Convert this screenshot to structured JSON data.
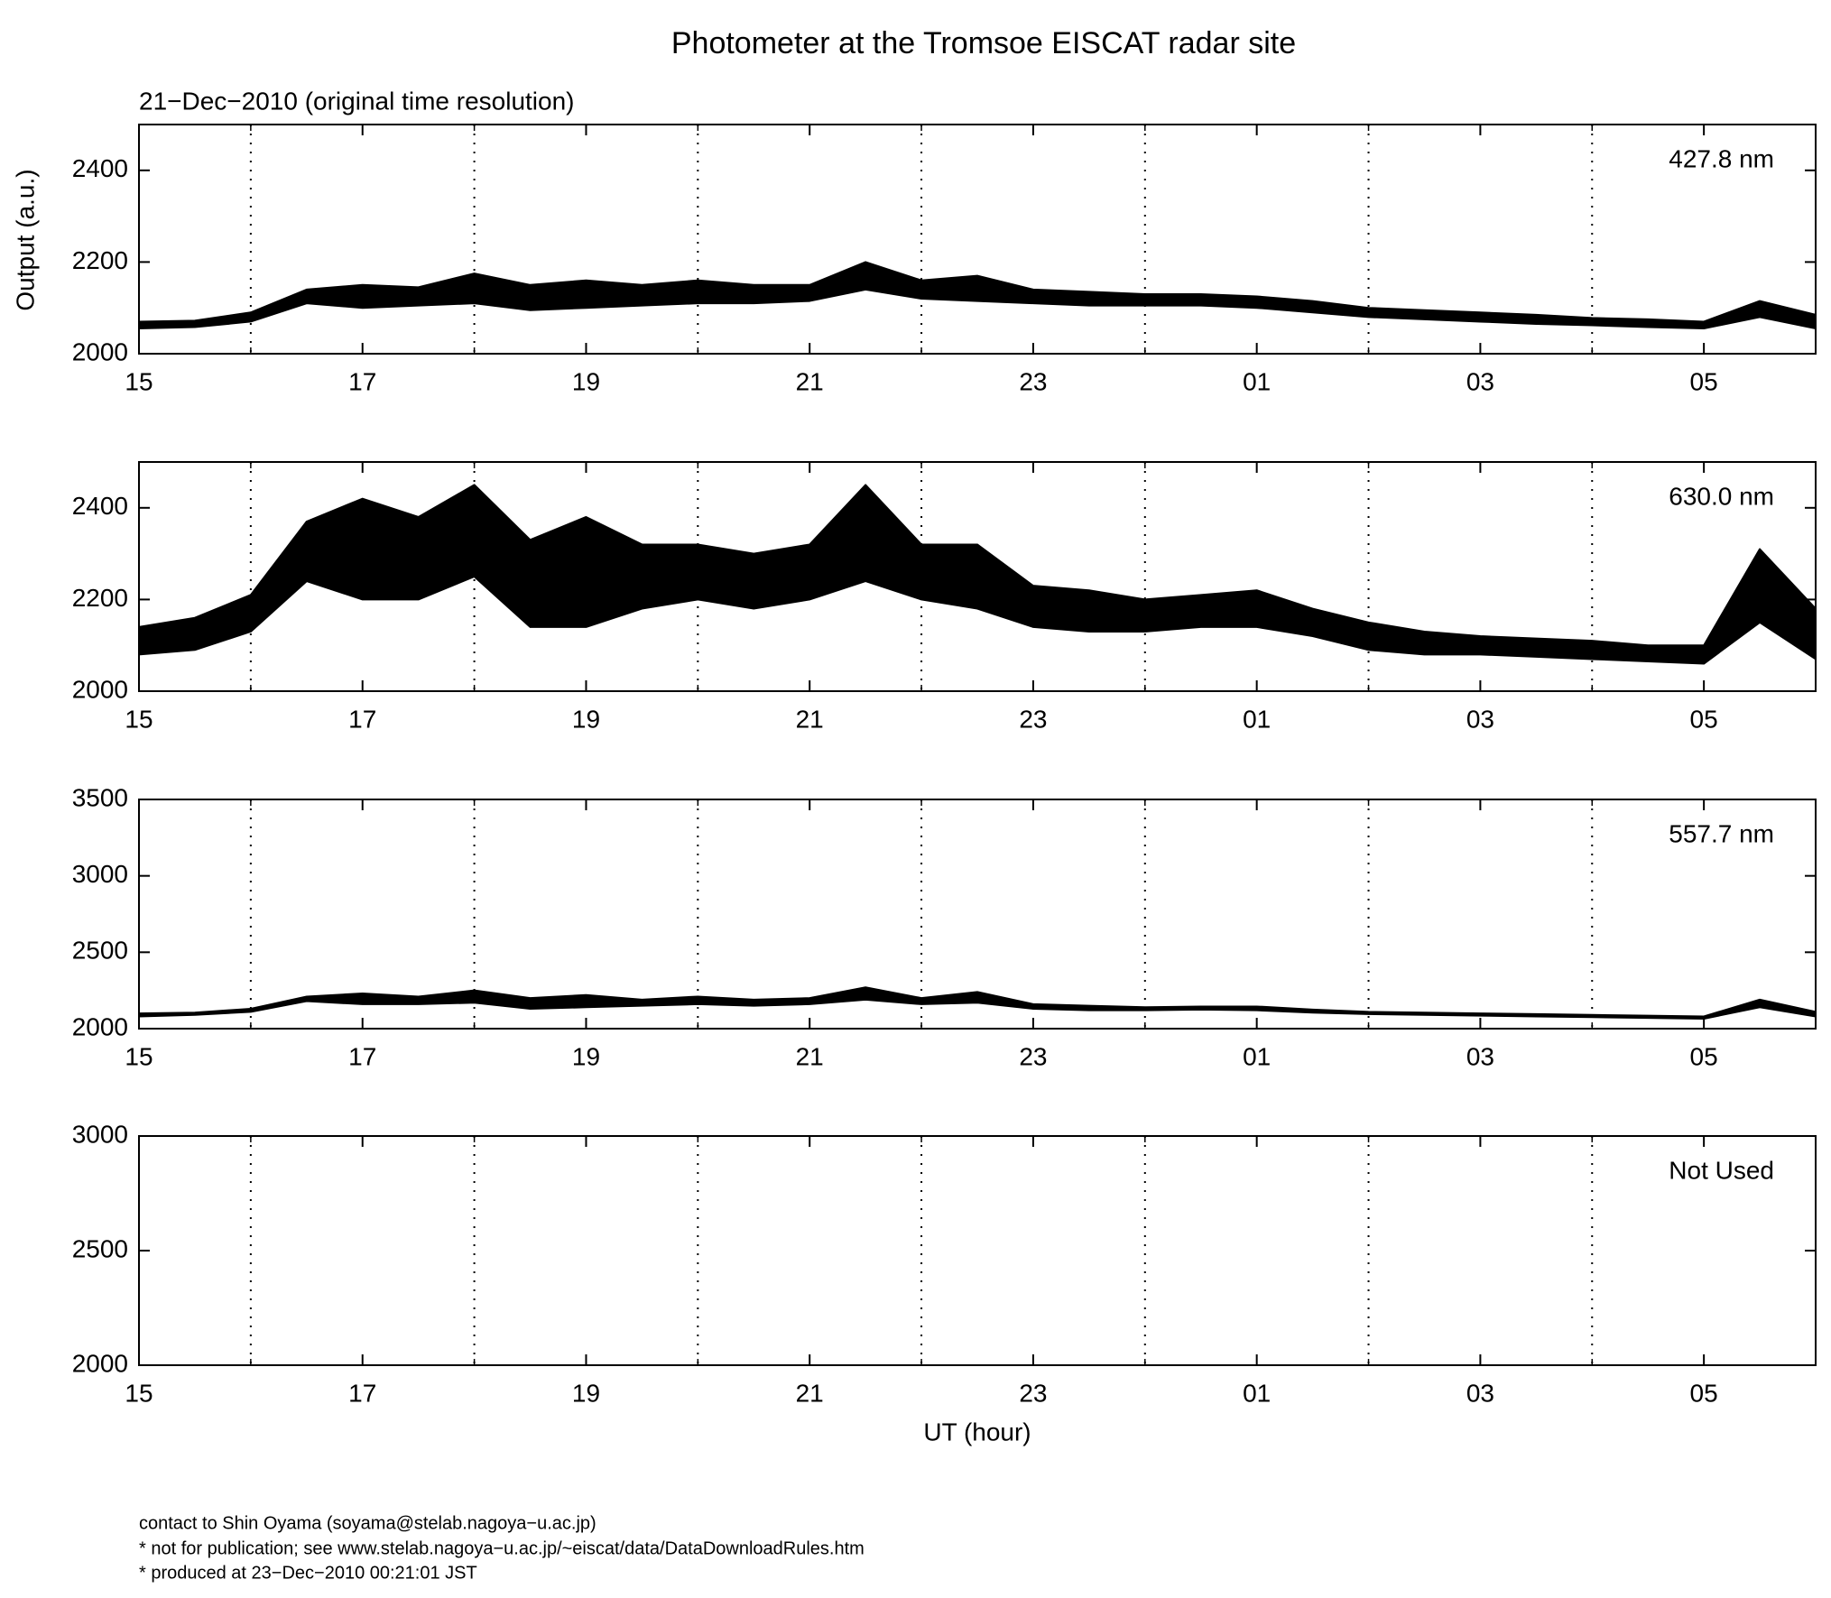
{
  "title": "Photometer at the Tromsoe EISCAT radar site",
  "footer": [
    "contact to Shin Oyama (soyama@stelab.nagoya−u.ac.jp)",
    "* not for publication; see www.stelab.nagoya−u.ac.jp/~eiscat/data/DataDownloadRules.htm",
    "* produced at 23−Dec−2010 00:21:01 JST"
  ],
  "chart_data": [
    {
      "type": "band",
      "subtitle": "21−Dec−2010 (original time resolution)",
      "ylabel": "Output (a.u.)",
      "label": "427.8 nm",
      "color": "#000000",
      "xlim": [
        15,
        30
      ],
      "xticks": [
        15,
        17,
        19,
        21,
        23,
        {
          "value": 25,
          "label": "01"
        },
        {
          "value": 27,
          "label": "03"
        },
        {
          "value": 29,
          "label": "05"
        }
      ],
      "xgrid": [
        16,
        18,
        20,
        22,
        24,
        26,
        28
      ],
      "ylim": [
        2000,
        2500
      ],
      "yticks": [
        2000,
        2200,
        2400
      ],
      "x": [
        15,
        15.5,
        16,
        16.5,
        17,
        17.5,
        18,
        18.5,
        19,
        19.5,
        20,
        20.5,
        21,
        21.5,
        22,
        22.5,
        23,
        23.5,
        24,
        24.5,
        25,
        25.5,
        26,
        26.5,
        27,
        27.5,
        28,
        28.5,
        29,
        29.5,
        30
      ],
      "low": [
        2055,
        2058,
        2070,
        2110,
        2100,
        2105,
        2110,
        2095,
        2100,
        2105,
        2110,
        2110,
        2115,
        2140,
        2120,
        2115,
        2110,
        2105,
        2105,
        2105,
        2100,
        2090,
        2080,
        2075,
        2070,
        2065,
        2062,
        2058,
        2055,
        2080,
        2055
      ],
      "high": [
        2070,
        2072,
        2090,
        2140,
        2150,
        2145,
        2175,
        2150,
        2160,
        2150,
        2160,
        2150,
        2150,
        2200,
        2160,
        2170,
        2140,
        2135,
        2130,
        2130,
        2125,
        2115,
        2100,
        2095,
        2090,
        2085,
        2078,
        2075,
        2070,
        2115,
        2085
      ]
    },
    {
      "type": "band",
      "label": "630.0 nm",
      "color": "#000000",
      "xlim": [
        15,
        30
      ],
      "xticks": [
        15,
        17,
        19,
        21,
        23,
        {
          "value": 25,
          "label": "01"
        },
        {
          "value": 27,
          "label": "03"
        },
        {
          "value": 29,
          "label": "05"
        }
      ],
      "xgrid": [
        16,
        18,
        20,
        22,
        24,
        26,
        28
      ],
      "ylim": [
        2000,
        2500
      ],
      "yticks": [
        2000,
        2200,
        2400
      ],
      "x": [
        15,
        15.5,
        16,
        16.5,
        17,
        17.5,
        18,
        18.5,
        19,
        19.5,
        20,
        20.5,
        21,
        21.5,
        22,
        22.5,
        23,
        23.5,
        24,
        24.5,
        25,
        25.5,
        26,
        26.5,
        27,
        27.5,
        28,
        28.5,
        29,
        29.5,
        30
      ],
      "low": [
        2080,
        2090,
        2130,
        2240,
        2200,
        2200,
        2250,
        2140,
        2140,
        2180,
        2200,
        2180,
        2200,
        2240,
        2200,
        2180,
        2140,
        2130,
        2130,
        2140,
        2140,
        2120,
        2090,
        2080,
        2080,
        2075,
        2070,
        2065,
        2060,
        2150,
        2070
      ],
      "high": [
        2140,
        2160,
        2210,
        2370,
        2420,
        2380,
        2450,
        2330,
        2380,
        2320,
        2320,
        2300,
        2320,
        2450,
        2320,
        2320,
        2230,
        2220,
        2200,
        2210,
        2220,
        2180,
        2150,
        2130,
        2120,
        2115,
        2110,
        2100,
        2100,
        2310,
        2180
      ]
    },
    {
      "type": "band",
      "label": "557.7 nm",
      "color": "#000000",
      "xlim": [
        15,
        30
      ],
      "xticks": [
        15,
        17,
        19,
        21,
        23,
        {
          "value": 25,
          "label": "01"
        },
        {
          "value": 27,
          "label": "03"
        },
        {
          "value": 29,
          "label": "05"
        }
      ],
      "xgrid": [
        16,
        18,
        20,
        22,
        24,
        26,
        28
      ],
      "ylim": [
        2000,
        3500
      ],
      "yticks": [
        2000,
        2500,
        3000,
        3500
      ],
      "x": [
        15,
        15.5,
        16,
        16.5,
        17,
        17.5,
        18,
        18.5,
        19,
        19.5,
        20,
        20.5,
        21,
        21.5,
        22,
        22.5,
        23,
        23.5,
        24,
        24.5,
        25,
        25.5,
        26,
        26.5,
        27,
        27.5,
        28,
        28.5,
        29,
        29.5,
        30
      ],
      "low": [
        2080,
        2090,
        2110,
        2180,
        2160,
        2160,
        2170,
        2130,
        2140,
        2150,
        2160,
        2150,
        2160,
        2190,
        2160,
        2170,
        2130,
        2120,
        2120,
        2125,
        2120,
        2105,
        2095,
        2090,
        2085,
        2080,
        2075,
        2070,
        2065,
        2140,
        2080
      ],
      "high": [
        2100,
        2105,
        2130,
        2210,
        2230,
        2210,
        2250,
        2200,
        2220,
        2190,
        2210,
        2190,
        2200,
        2270,
        2200,
        2240,
        2160,
        2150,
        2140,
        2145,
        2145,
        2125,
        2110,
        2105,
        2100,
        2095,
        2090,
        2085,
        2080,
        2190,
        2110
      ]
    },
    {
      "type": "band",
      "label": "Not Used",
      "xlabel": "UT (hour)",
      "xlim": [
        15,
        30
      ],
      "xticks": [
        15,
        17,
        19,
        21,
        23,
        {
          "value": 25,
          "label": "01"
        },
        {
          "value": 27,
          "label": "03"
        },
        {
          "value": 29,
          "label": "05"
        }
      ],
      "xgrid": [
        16,
        18,
        20,
        22,
        24,
        26,
        28
      ],
      "ylim": [
        2000,
        3000
      ],
      "yticks": [
        2000,
        2500,
        3000
      ]
    }
  ]
}
